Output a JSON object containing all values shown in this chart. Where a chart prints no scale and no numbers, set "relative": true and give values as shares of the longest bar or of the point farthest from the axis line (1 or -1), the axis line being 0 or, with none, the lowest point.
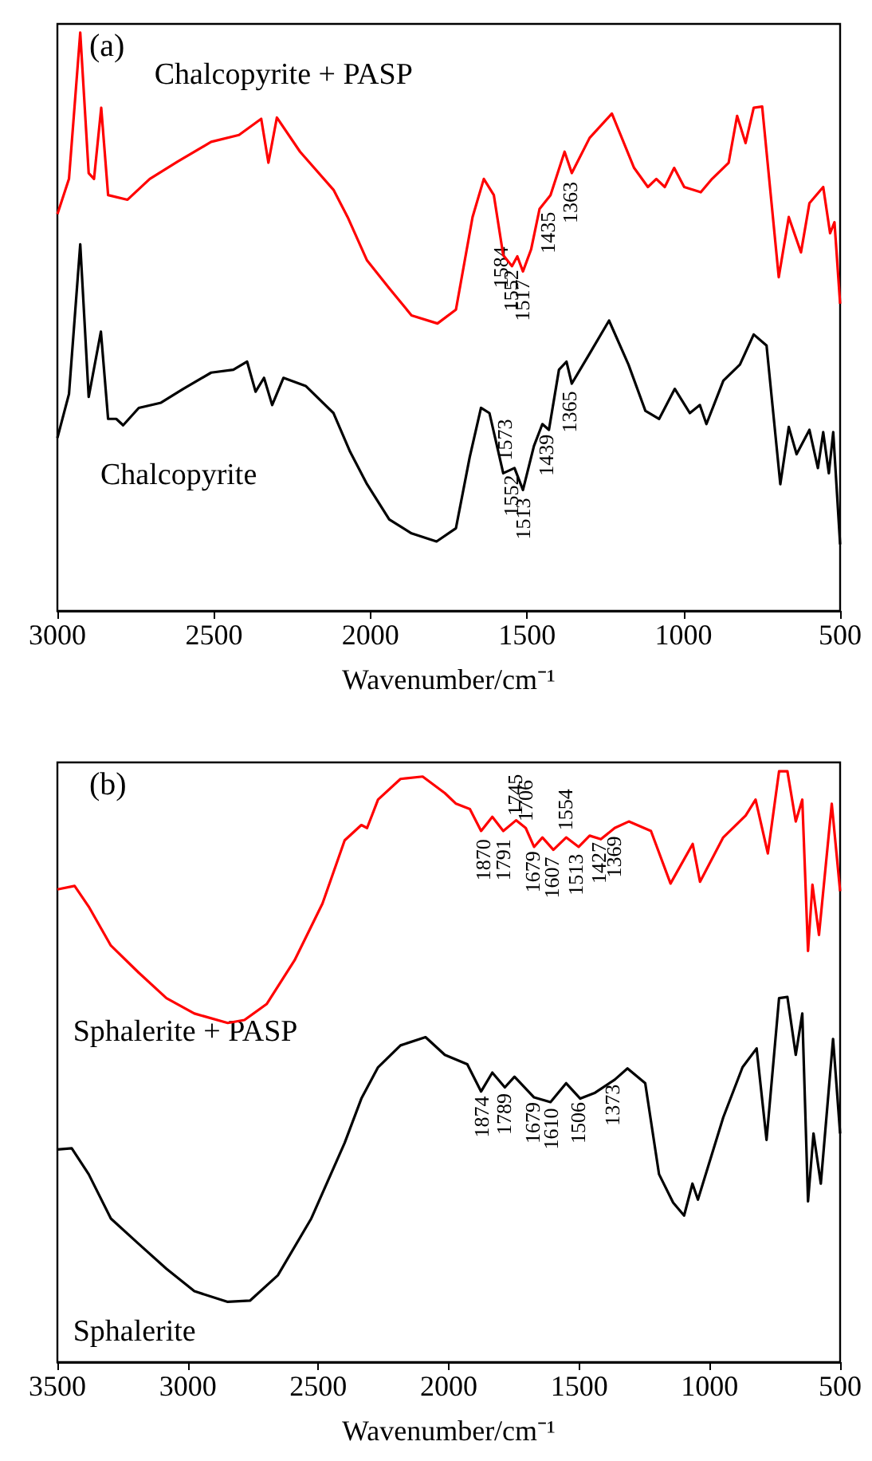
{
  "chart_data": [
    {
      "type": "line",
      "title": "(a)",
      "xlabel": "Wavenumber/cm⁻¹",
      "relative": true,
      "xlim": [
        3000,
        500
      ],
      "xticks": [
        3000,
        2500,
        2000,
        1500,
        1000,
        500
      ],
      "grid": false,
      "legend": false,
      "marker": "none",
      "line_style": "solid",
      "series": [
        {
          "name": "Chalcopyrite + PASP",
          "color": "#ff0000",
          "x": [
            3000,
            2963,
            2927,
            2900,
            2883,
            2860,
            2838,
            2776,
            2705,
            2616,
            2509,
            2420,
            2349,
            2326,
            2299,
            2225,
            2118,
            2073,
            2011,
            1940,
            1869,
            1786,
            1727,
            1674,
            1638,
            1606,
            1576,
            1548,
            1531,
            1513,
            1487,
            1460,
            1425,
            1380,
            1357,
            1300,
            1229,
            1158,
            1114,
            1087,
            1060,
            1030,
            998,
            945,
            909,
            856,
            829,
            802,
            776,
            749,
            696,
            664,
            625,
            598,
            554,
            532,
            518,
            500
          ],
          "values": [
            0.686,
            0.747,
            1.0,
            0.757,
            0.747,
            0.87,
            0.719,
            0.711,
            0.747,
            0.777,
            0.811,
            0.823,
            0.851,
            0.775,
            0.853,
            0.794,
            0.728,
            0.681,
            0.606,
            0.558,
            0.511,
            0.497,
            0.521,
            0.681,
            0.747,
            0.719,
            0.615,
            0.596,
            0.613,
            0.587,
            0.625,
            0.695,
            0.719,
            0.794,
            0.757,
            0.818,
            0.86,
            0.766,
            0.733,
            0.747,
            0.733,
            0.766,
            0.733,
            0.724,
            0.747,
            0.775,
            0.856,
            0.809,
            0.87,
            0.872,
            0.577,
            0.681,
            0.62,
            0.705,
            0.733,
            0.653,
            0.672,
            0.531
          ]
        },
        {
          "name": "Chalcopyrite",
          "color": "#000000",
          "x": [
            3000,
            2963,
            2927,
            2900,
            2861,
            2838,
            2812,
            2790,
            2740,
            2669,
            2598,
            2509,
            2438,
            2394,
            2367,
            2340,
            2314,
            2278,
            2207,
            2118,
            2065,
            2011,
            1940,
            1869,
            1789,
            1727,
            1683,
            1647,
            1620,
            1576,
            1540,
            1513,
            1478,
            1451,
            1430,
            1398,
            1374,
            1357,
            1300,
            1238,
            1176,
            1122,
            1078,
            1028,
            980,
            948,
            927,
            873,
            820,
            776,
            735,
            691,
            664,
            639,
            598,
            571,
            554,
            536,
            522,
            500
          ],
          "values": [
            0.299,
            0.375,
            0.634,
            0.37,
            0.483,
            0.332,
            0.332,
            0.321,
            0.351,
            0.36,
            0.384,
            0.412,
            0.417,
            0.431,
            0.379,
            0.403,
            0.356,
            0.403,
            0.389,
            0.342,
            0.275,
            0.219,
            0.158,
            0.134,
            0.12,
            0.143,
            0.266,
            0.351,
            0.342,
            0.238,
            0.247,
            0.209,
            0.285,
            0.323,
            0.313,
            0.417,
            0.431,
            0.393,
            0.445,
            0.502,
            0.426,
            0.346,
            0.332,
            0.384,
            0.342,
            0.356,
            0.323,
            0.398,
            0.426,
            0.478,
            0.459,
            0.219,
            0.318,
            0.271,
            0.313,
            0.247,
            0.309,
            0.238,
            0.309,
            0.115
          ]
        }
      ],
      "annotations": [
        {
          "text": "1584",
          "x": 1584,
          "y": 0.63
        },
        {
          "text": "1552",
          "x": 1552,
          "y": 0.59
        },
        {
          "text": "1517",
          "x": 1517,
          "y": 0.573
        },
        {
          "text": "1435",
          "x": 1435,
          "y": 0.69
        },
        {
          "text": "1363",
          "x": 1363,
          "y": 0.742
        },
        {
          "text": "1573",
          "x": 1573,
          "y": 0.26
        },
        {
          "text": "1552",
          "x": 1552,
          "y": 0.235
        },
        {
          "text": "1513",
          "x": 1513,
          "y": 0.195
        },
        {
          "text": "1439",
          "x": 1439,
          "y": 0.305
        },
        {
          "text": "1365",
          "x": 1365,
          "y": 0.38
        }
      ]
    },
    {
      "type": "line",
      "title": "(b)",
      "xlabel": "Wavenumber/cm⁻¹",
      "relative": true,
      "xlim": [
        3500,
        500
      ],
      "xticks": [
        3500,
        3000,
        2500,
        2000,
        1500,
        1000,
        500
      ],
      "grid": false,
      "legend": false,
      "marker": "none",
      "line_style": "solid",
      "series": [
        {
          "name": "Sphalerite + PASP",
          "color": "#ff0000",
          "x": [
            3500,
            3434,
            3380,
            3295,
            3188,
            3082,
            2975,
            2847,
            2783,
            2698,
            2591,
            2484,
            2399,
            2335,
            2313,
            2271,
            2185,
            2100,
            2015,
            1972,
            1919,
            1876,
            1833,
            1791,
            1742,
            1705,
            1673,
            1641,
            1599,
            1550,
            1502,
            1460,
            1417,
            1364,
            1310,
            1225,
            1150,
            1065,
            1037,
            948,
            862,
            824,
            777,
            734,
            702,
            670,
            645,
            623,
            606,
            581,
            532,
            500
          ],
          "values": [
            0.8,
            0.806,
            0.771,
            0.705,
            0.659,
            0.616,
            0.59,
            0.574,
            0.579,
            0.606,
            0.68,
            0.776,
            0.883,
            0.909,
            0.904,
            0.952,
            0.987,
            0.991,
            0.963,
            0.945,
            0.936,
            0.899,
            0.923,
            0.899,
            0.917,
            0.904,
            0.872,
            0.888,
            0.867,
            0.888,
            0.872,
            0.891,
            0.885,
            0.904,
            0.915,
            0.899,
            0.81,
            0.877,
            0.813,
            0.888,
            0.925,
            0.952,
            0.861,
            1.0,
            1.0,
            0.915,
            0.952,
            0.696,
            0.808,
            0.723,
            0.945,
            0.797
          ]
        },
        {
          "name": "Sphalerite",
          "color": "#000000",
          "x": [
            3500,
            3445,
            3380,
            3295,
            3188,
            3082,
            2975,
            2847,
            2762,
            2655,
            2527,
            2399,
            2335,
            2271,
            2185,
            2089,
            2015,
            1929,
            1876,
            1833,
            1785,
            1748,
            1673,
            1610,
            1550,
            1496,
            1439,
            1364,
            1315,
            1247,
            1194,
            1140,
            1098,
            1066,
            1045,
            948,
            874,
            820,
            782,
            734,
            702,
            670,
            645,
            623,
            602,
            574,
            527,
            500
          ],
          "values": [
            0.36,
            0.362,
            0.318,
            0.243,
            0.2,
            0.158,
            0.12,
            0.102,
            0.104,
            0.147,
            0.243,
            0.371,
            0.446,
            0.499,
            0.536,
            0.55,
            0.52,
            0.504,
            0.458,
            0.49,
            0.465,
            0.483,
            0.448,
            0.44,
            0.472,
            0.446,
            0.456,
            0.478,
            0.497,
            0.472,
            0.318,
            0.27,
            0.248,
            0.302,
            0.275,
            0.414,
            0.499,
            0.531,
            0.376,
            0.616,
            0.618,
            0.52,
            0.59,
            0.272,
            0.387,
            0.302,
            0.547,
            0.387
          ]
        }
      ],
      "annotations": [
        {
          "text": "1870",
          "x": 1870,
          "y": 0.885
        },
        {
          "text": "1791",
          "x": 1791,
          "y": 0.885
        },
        {
          "text": "1745",
          "x": 1745,
          "y": 0.925
        },
        {
          "text": "1706",
          "x": 1706,
          "y": 0.915
        },
        {
          "text": "1679",
          "x": 1679,
          "y": 0.865
        },
        {
          "text": "1607",
          "x": 1607,
          "y": 0.855
        },
        {
          "text": "1554",
          "x": 1554,
          "y": 0.9
        },
        {
          "text": "1513",
          "x": 1513,
          "y": 0.86
        },
        {
          "text": "1427",
          "x": 1427,
          "y": 0.88
        },
        {
          "text": "1369",
          "x": 1369,
          "y": 0.89
        },
        {
          "text": "1874",
          "x": 1874,
          "y": 0.45
        },
        {
          "text": "1789",
          "x": 1789,
          "y": 0.455
        },
        {
          "text": "1679",
          "x": 1679,
          "y": 0.44
        },
        {
          "text": "1610",
          "x": 1610,
          "y": 0.43
        },
        {
          "text": "1506",
          "x": 1506,
          "y": 0.44
        },
        {
          "text": "1373",
          "x": 1373,
          "y": 0.47
        }
      ]
    }
  ]
}
